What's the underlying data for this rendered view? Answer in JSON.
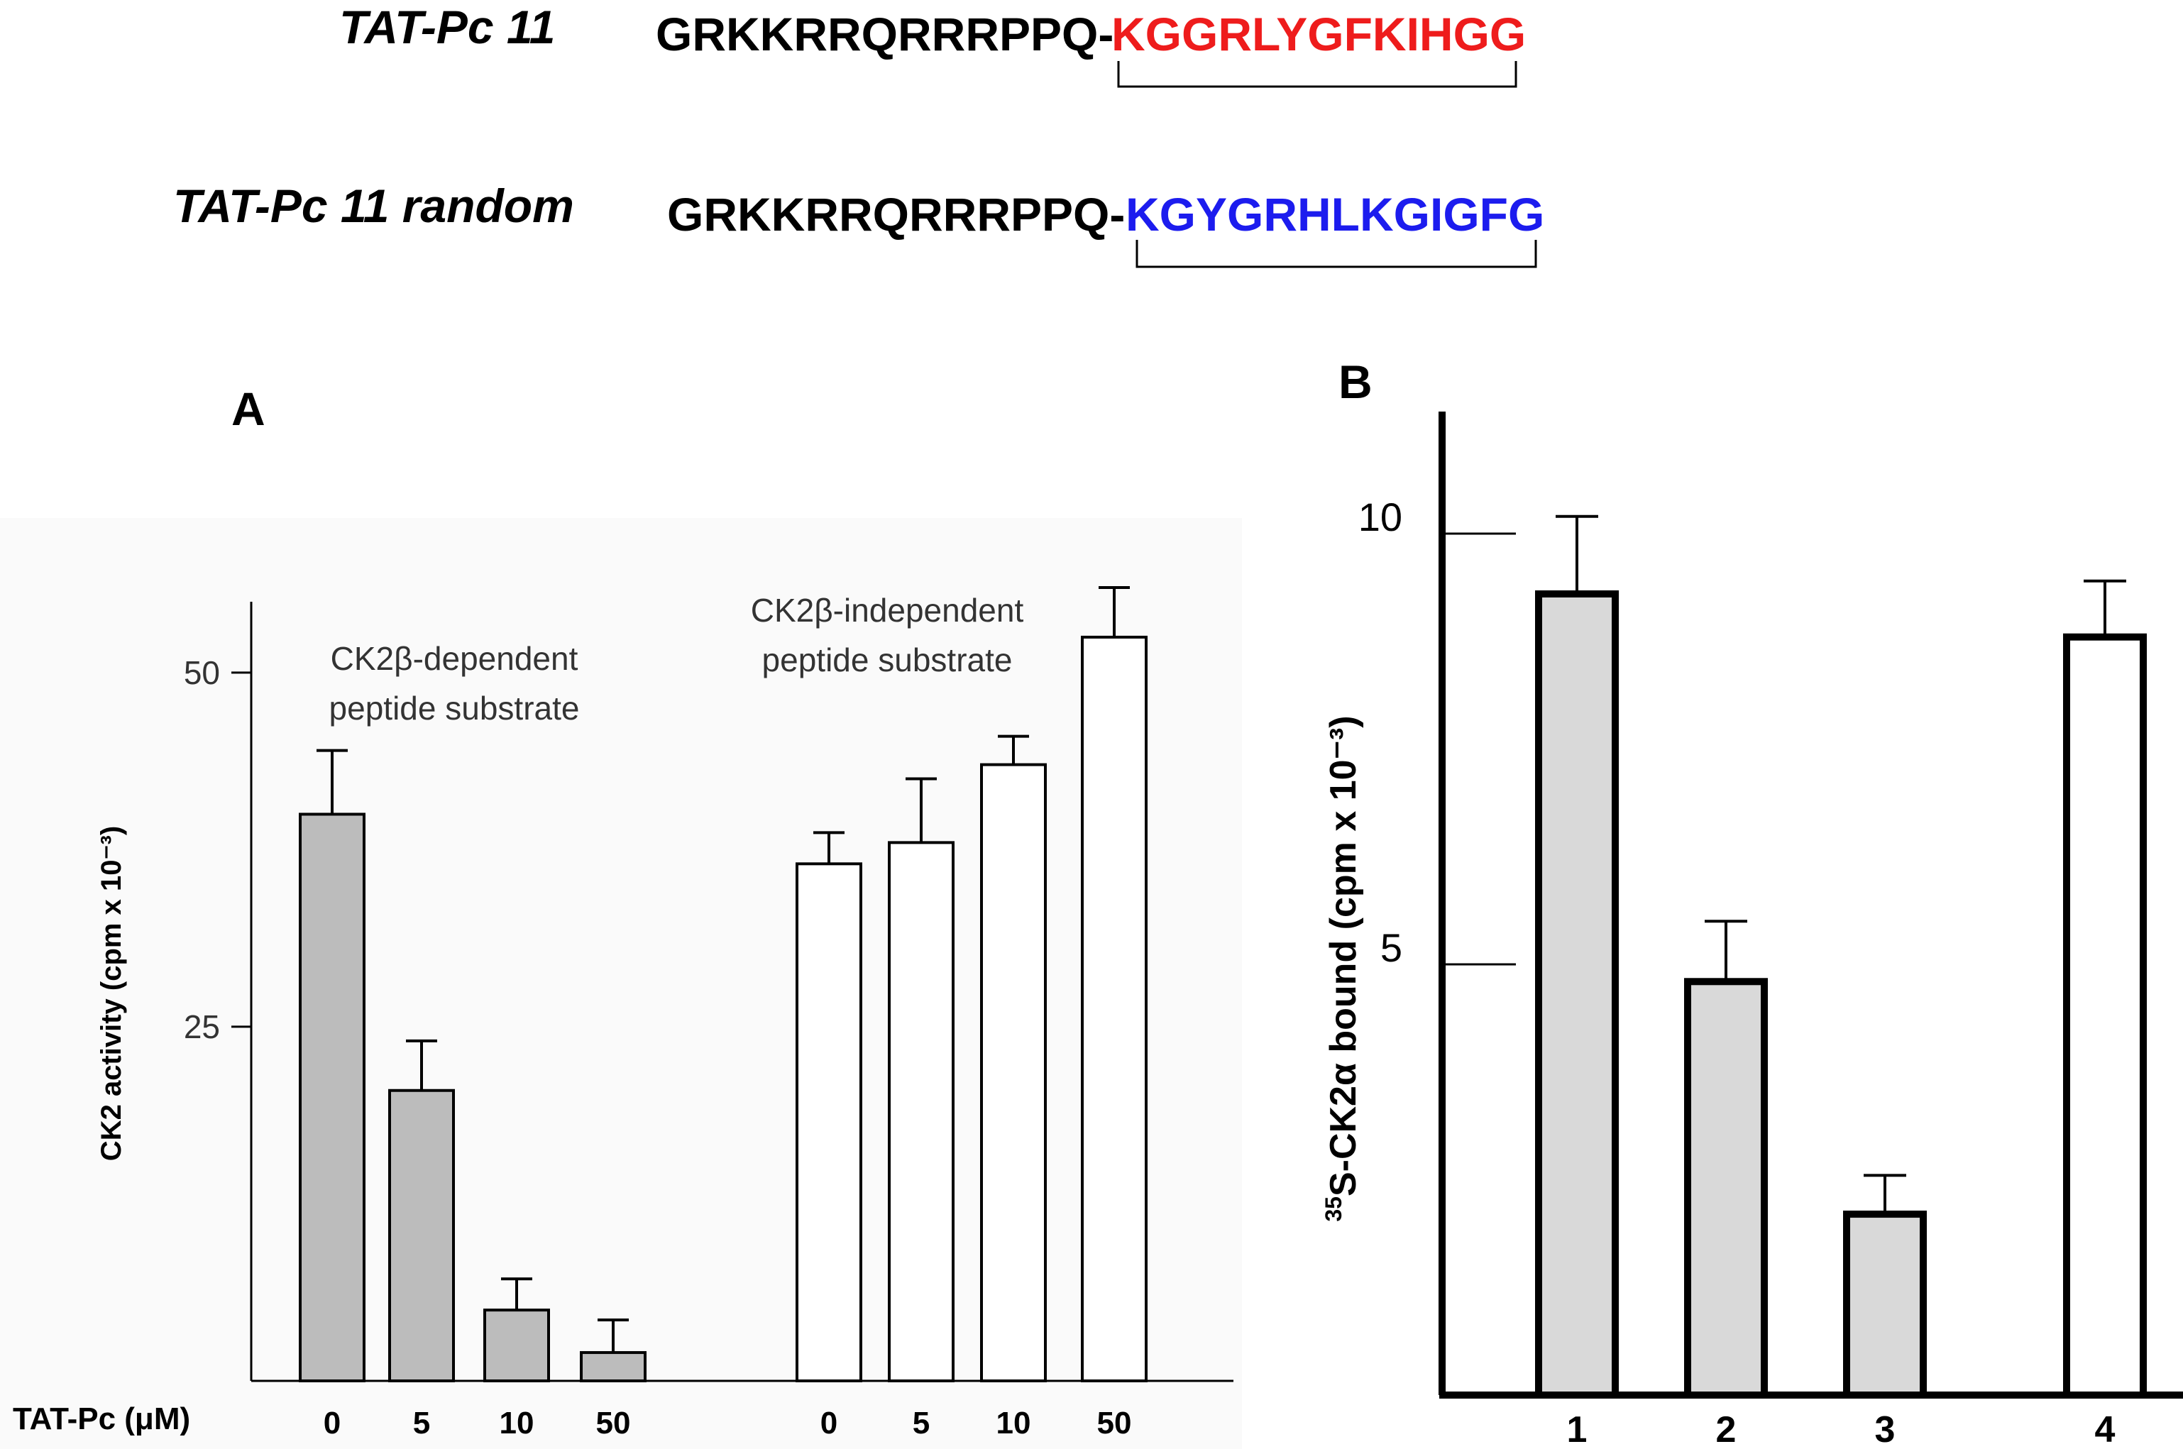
{
  "sequences": [
    {
      "name": "TAT-Pc 11",
      "prefix": "GRKKRRQRRRPPQ-",
      "suffix": "KGGRLYGFKIHGG",
      "suffix_color": "#ee1c1c"
    },
    {
      "name": "TAT-Pc 11  random",
      "prefix": "GRKKRRQRRRPPQ-",
      "suffix": "KGYGRHLKGIGFG",
      "suffix_color": "#1c1cee"
    }
  ],
  "chart_data": [
    {
      "panel": "A",
      "type": "bar",
      "ylabel": "CK2 activity (cpm x 10⁻³)",
      "xlabel": "TAT-Pc (μM)",
      "yticks": [
        25,
        50
      ],
      "ylim": [
        0,
        55
      ],
      "groups": [
        {
          "name": "CK2β-dependent|peptide substrate",
          "fill": "#bcbcbc",
          "categories": [
            "0",
            "5",
            "10",
            "50"
          ],
          "values": [
            40,
            20.5,
            5,
            2
          ],
          "errors": [
            4.5,
            3.5,
            2.2,
            2.3
          ]
        },
        {
          "name": "CK2β-independent|peptide substrate",
          "fill": "#ffffff",
          "categories": [
            "0",
            "5",
            "10",
            "50"
          ],
          "values": [
            36.5,
            38,
            43.5,
            52.5
          ],
          "errors": [
            2.2,
            4.5,
            2,
            3.5
          ]
        }
      ]
    },
    {
      "panel": "B",
      "type": "bar",
      "ylabel": "35S-CK2α bound (cpm x 10⁻³)",
      "ylabel_sup": "35",
      "ylabel_main": "S-CK2α bound (cpm x 10⁻³)",
      "yticks": [
        5,
        10
      ],
      "ylim": [
        0,
        11.5
      ],
      "categories": [
        "1",
        "2",
        "3",
        "4"
      ],
      "values": [
        9.3,
        4.8,
        2.1,
        8.8
      ],
      "errors": [
        0.9,
        0.7,
        0.45,
        0.65
      ],
      "fills": [
        "#d9d9d9",
        "#d9d9d9",
        "#d9d9d9",
        "#ffffff"
      ]
    }
  ]
}
